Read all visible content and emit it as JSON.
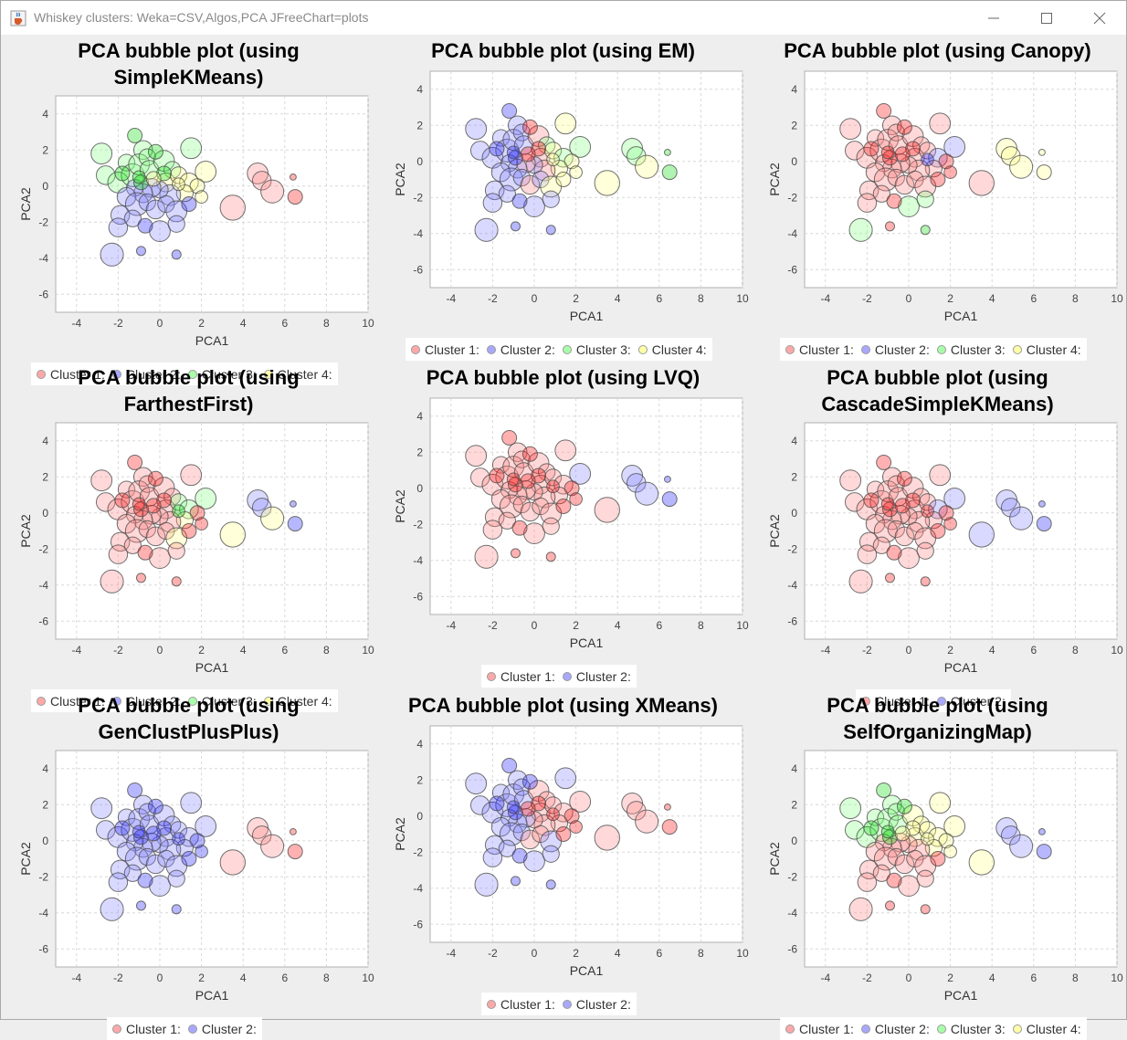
{
  "window": {
    "title": "Whiskey clusters: Weka=CSV,Algos,PCA JFreeChart=plots",
    "app_icon": "java-cup-icon",
    "controls": [
      "minimize-icon",
      "maximize-icon",
      "close-icon"
    ]
  },
  "colors": {
    "cluster1": "#ff8c8c",
    "cluster2": "#8c8cff",
    "cluster3": "#8cff8c",
    "cluster4": "#ffff8c",
    "cluster1_dense": "#ff2020",
    "cluster2_dense": "#3030ff",
    "cluster3_dense": "#20dd20"
  },
  "charts": [
    {
      "title_lines": [
        "PCA bubble plot (using",
        "SimpleKMeans)"
      ],
      "legend": [
        "Cluster 1:",
        "Cluster 2:",
        "Cluster 3:",
        "Cluster 4:"
      ],
      "assign": "kmeans"
    },
    {
      "title_lines": [
        "PCA bubble plot (using EM)"
      ],
      "legend": [
        "Cluster 1:",
        "Cluster 2:",
        "Cluster 3:",
        "Cluster 4:"
      ],
      "assign": "em"
    },
    {
      "title_lines": [
        "PCA bubble plot (using Canopy)"
      ],
      "legend": [
        "Cluster 1:",
        "Cluster 2:",
        "Cluster 3:",
        "Cluster 4:"
      ],
      "assign": "canopy"
    },
    {
      "title_lines": [
        "PCA bubble plot (using",
        "FarthestFirst)"
      ],
      "legend": [
        "Cluster 1:",
        "Cluster 2:",
        "Cluster 3:",
        "Cluster 4:"
      ],
      "assign": "ff"
    },
    {
      "title_lines": [
        "PCA bubble plot (using LVQ)"
      ],
      "legend": [
        "Cluster 1:",
        "Cluster 2:"
      ],
      "assign": "lvq"
    },
    {
      "title_lines": [
        "PCA bubble plot (using",
        "CascadeSimpleKMeans)"
      ],
      "legend": [
        "Cluster 1:",
        "Cluster 2:"
      ],
      "assign": "cascade"
    },
    {
      "title_lines": [
        "PCA bubble plot (using",
        "GenClustPlusPlus)"
      ],
      "legend": [
        "Cluster 1:",
        "Cluster 2:"
      ],
      "assign": "gencl"
    },
    {
      "title_lines": [
        "PCA bubble plot (using XMeans)"
      ],
      "legend": [
        "Cluster 1:",
        "Cluster 2:"
      ],
      "assign": "xmeans"
    },
    {
      "title_lines": [
        "PCA bubble plot (using",
        "SelfOrganizingMap)"
      ],
      "legend": [
        "Cluster 1:",
        "Cluster 2:",
        "Cluster 3:",
        "Cluster 4:"
      ],
      "assign": "som"
    }
  ],
  "chart_data": {
    "type": "scatter",
    "subtype": "bubble",
    "xlabel": "PCA1",
    "ylabel": "PCA2",
    "xlim": [
      -5,
      10
    ],
    "ylim": [
      -7,
      5
    ],
    "xticks": [
      -4,
      -2,
      0,
      2,
      4,
      6,
      8,
      10
    ],
    "yticks": [
      -6,
      -4,
      -2,
      0,
      2,
      4
    ],
    "grid": true,
    "points": [
      {
        "x": -2.8,
        "y": 1.8,
        "size": 0.5
      },
      {
        "x": -2.6,
        "y": 0.6,
        "size": 0.45
      },
      {
        "x": -2.0,
        "y": 0.2,
        "size": 0.5
      },
      {
        "x": -1.6,
        "y": 1.3,
        "size": 0.4
      },
      {
        "x": -1.2,
        "y": 2.8,
        "size": 0.35
      },
      {
        "x": -0.8,
        "y": 2.0,
        "size": 0.45
      },
      {
        "x": -1.3,
        "y": 0.6,
        "size": 0.55
      },
      {
        "x": -1.0,
        "y": 1.2,
        "size": 0.5
      },
      {
        "x": -0.6,
        "y": 1.6,
        "size": 0.4
      },
      {
        "x": -0.5,
        "y": 0.9,
        "size": 0.45
      },
      {
        "x": -1.8,
        "y": 0.7,
        "size": 0.35
      },
      {
        "x": 0.2,
        "y": 1.4,
        "size": 0.5
      },
      {
        "x": 0.6,
        "y": 0.9,
        "size": 0.4
      },
      {
        "x": 1.5,
        "y": 2.1,
        "size": 0.5
      },
      {
        "x": 0.3,
        "y": 0.2,
        "size": 0.45
      },
      {
        "x": 0.9,
        "y": 0.6,
        "size": 0.4
      },
      {
        "x": 1.4,
        "y": 0.2,
        "size": 0.45
      },
      {
        "x": 2.2,
        "y": 0.8,
        "size": 0.5
      },
      {
        "x": 1.8,
        "y": 0.0,
        "size": 0.35
      },
      {
        "x": 1.2,
        "y": -0.4,
        "size": 0.4
      },
      {
        "x": 0.5,
        "y": -0.5,
        "size": 0.5
      },
      {
        "x": 0.0,
        "y": -0.2,
        "size": 0.4
      },
      {
        "x": -0.4,
        "y": -0.1,
        "size": 0.45
      },
      {
        "x": -0.8,
        "y": -0.4,
        "size": 0.45
      },
      {
        "x": -1.2,
        "y": -0.1,
        "size": 0.4
      },
      {
        "x": -1.6,
        "y": -0.6,
        "size": 0.45
      },
      {
        "x": -1.1,
        "y": -1.0,
        "size": 0.55
      },
      {
        "x": -0.6,
        "y": -0.9,
        "size": 0.4
      },
      {
        "x": -0.2,
        "y": -1.3,
        "size": 0.45
      },
      {
        "x": 0.3,
        "y": -1.0,
        "size": 0.4
      },
      {
        "x": 0.8,
        "y": -1.4,
        "size": 0.5
      },
      {
        "x": 1.4,
        "y": -1.0,
        "size": 0.35
      },
      {
        "x": -1.9,
        "y": -1.6,
        "size": 0.45
      },
      {
        "x": -1.3,
        "y": -1.8,
        "size": 0.4
      },
      {
        "x": -2.0,
        "y": -2.3,
        "size": 0.45
      },
      {
        "x": 0.0,
        "y": -2.5,
        "size": 0.5
      },
      {
        "x": 0.8,
        "y": -2.1,
        "size": 0.4
      },
      {
        "x": -0.7,
        "y": -2.2,
        "size": 0.35
      },
      {
        "x": -2.3,
        "y": -3.8,
        "size": 0.55
      },
      {
        "x": -0.9,
        "y": -3.6,
        "size": 0.22
      },
      {
        "x": 0.8,
        "y": -3.8,
        "size": 0.22
      },
      {
        "x": 0.2,
        "y": 0.7,
        "size": 0.35
      },
      {
        "x": -0.2,
        "y": 1.9,
        "size": 0.35
      },
      {
        "x": -0.9,
        "y": 0.2,
        "size": 0.35
      },
      {
        "x": 2.0,
        "y": -0.6,
        "size": 0.3
      },
      {
        "x": 3.5,
        "y": -1.2,
        "size": 0.6
      },
      {
        "x": 4.7,
        "y": 0.7,
        "size": 0.5
      },
      {
        "x": 4.9,
        "y": 0.3,
        "size": 0.45
      },
      {
        "x": 5.4,
        "y": -0.3,
        "size": 0.55
      },
      {
        "x": 6.5,
        "y": -0.6,
        "size": 0.35
      },
      {
        "x": 6.4,
        "y": 0.5,
        "size": 0.15
      },
      {
        "x": -1.0,
        "y": 0.5,
        "size": 0.3
      },
      {
        "x": -0.3,
        "y": 0.4,
        "size": 0.35
      },
      {
        "x": 0.9,
        "y": 0.1,
        "size": 0.3
      }
    ],
    "assignments": {
      "kmeans": [
        3,
        3,
        3,
        3,
        3,
        3,
        3,
        3,
        3,
        3,
        3,
        3,
        3,
        3,
        4,
        4,
        4,
        4,
        4,
        4,
        2,
        2,
        2,
        2,
        2,
        2,
        2,
        2,
        2,
        2,
        2,
        2,
        2,
        2,
        2,
        2,
        2,
        2,
        2,
        2,
        2,
        3,
        3,
        3,
        4,
        1,
        1,
        1,
        1,
        1,
        1,
        3,
        4,
        4
      ],
      "em": [
        2,
        2,
        2,
        2,
        2,
        2,
        2,
        2,
        2,
        2,
        2,
        1,
        3,
        4,
        1,
        4,
        3,
        3,
        4,
        4,
        1,
        2,
        1,
        2,
        2,
        2,
        2,
        2,
        1,
        2,
        4,
        4,
        2,
        2,
        2,
        2,
        2,
        2,
        2,
        2,
        2,
        1,
        1,
        2,
        4,
        4,
        3,
        3,
        4,
        3,
        3,
        2,
        1,
        4
      ],
      "canopy": [
        1,
        1,
        1,
        1,
        1,
        1,
        1,
        1,
        1,
        1,
        1,
        1,
        1,
        1,
        1,
        1,
        2,
        2,
        1,
        1,
        1,
        1,
        1,
        1,
        1,
        1,
        1,
        1,
        1,
        1,
        1,
        1,
        1,
        1,
        1,
        3,
        3,
        1,
        3,
        1,
        3,
        1,
        1,
        1,
        1,
        1,
        4,
        4,
        4,
        4,
        4,
        1,
        1,
        2
      ],
      "ff": [
        1,
        1,
        1,
        1,
        1,
        1,
        1,
        1,
        1,
        1,
        1,
        1,
        1,
        1,
        1,
        3,
        3,
        3,
        1,
        4,
        1,
        1,
        1,
        1,
        1,
        1,
        1,
        1,
        1,
        1,
        4,
        1,
        1,
        1,
        1,
        1,
        1,
        1,
        1,
        1,
        1,
        1,
        1,
        1,
        1,
        4,
        2,
        2,
        4,
        2,
        2,
        1,
        1,
        3
      ],
      "lvq": [
        1,
        1,
        1,
        1,
        1,
        1,
        1,
        1,
        1,
        1,
        1,
        1,
        1,
        1,
        1,
        1,
        1,
        2,
        1,
        1,
        1,
        1,
        1,
        1,
        1,
        1,
        1,
        1,
        1,
        1,
        1,
        1,
        1,
        1,
        1,
        1,
        1,
        1,
        1,
        1,
        1,
        1,
        1,
        1,
        1,
        1,
        2,
        2,
        2,
        2,
        2,
        1,
        1,
        1
      ],
      "cascade": [
        1,
        1,
        1,
        1,
        1,
        1,
        1,
        1,
        1,
        1,
        1,
        1,
        1,
        1,
        1,
        1,
        2,
        2,
        1,
        1,
        1,
        1,
        1,
        1,
        1,
        1,
        1,
        1,
        1,
        1,
        1,
        1,
        1,
        1,
        1,
        1,
        1,
        1,
        1,
        1,
        1,
        1,
        1,
        1,
        1,
        2,
        2,
        2,
        2,
        2,
        2,
        1,
        1,
        1
      ],
      "gencl": [
        2,
        2,
        2,
        2,
        2,
        2,
        2,
        2,
        2,
        2,
        2,
        2,
        2,
        2,
        2,
        2,
        2,
        2,
        2,
        2,
        2,
        2,
        2,
        2,
        2,
        2,
        2,
        2,
        2,
        2,
        2,
        2,
        2,
        2,
        2,
        2,
        2,
        2,
        2,
        2,
        2,
        2,
        2,
        2,
        2,
        1,
        1,
        1,
        1,
        1,
        1,
        2,
        2,
        2
      ],
      "xmeans": [
        2,
        2,
        2,
        2,
        2,
        2,
        2,
        2,
        2,
        2,
        2,
        1,
        1,
        2,
        1,
        1,
        1,
        1,
        1,
        1,
        1,
        1,
        2,
        2,
        2,
        2,
        2,
        2,
        1,
        1,
        2,
        1,
        2,
        2,
        2,
        2,
        2,
        2,
        2,
        2,
        2,
        1,
        2,
        2,
        1,
        1,
        1,
        1,
        1,
        1,
        1,
        2,
        1,
        1
      ],
      "som": [
        3,
        3,
        3,
        3,
        3,
        3,
        3,
        3,
        3,
        3,
        3,
        4,
        4,
        4,
        4,
        4,
        4,
        4,
        4,
        4,
        1,
        1,
        1,
        1,
        1,
        1,
        1,
        1,
        1,
        1,
        1,
        1,
        1,
        1,
        1,
        1,
        1,
        1,
        1,
        1,
        1,
        4,
        3,
        3,
        4,
        4,
        2,
        2,
        2,
        2,
        2,
        3,
        4,
        4
      ]
    }
  }
}
